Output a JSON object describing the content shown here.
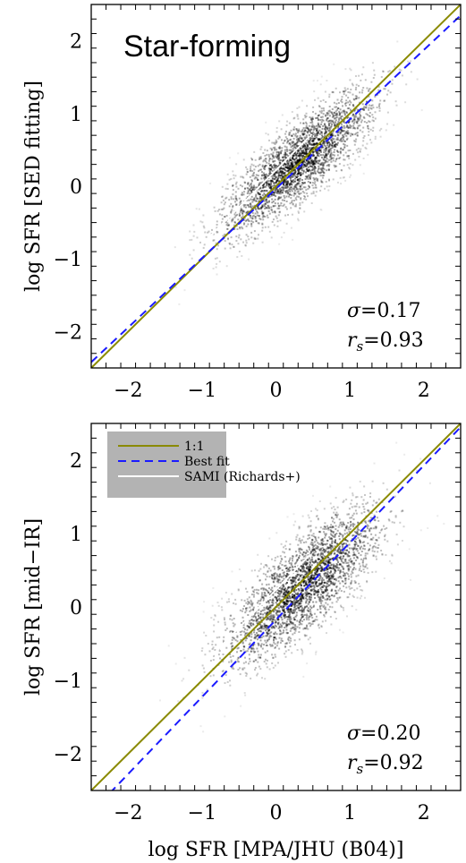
{
  "chart_data": [
    {
      "type": "scatter",
      "panel_label": "Star-forming",
      "ylabel": "log SFR [SED fitting]",
      "xlabel": "",
      "xlim": [
        -2.5,
        2.5
      ],
      "ylim": [
        -2.5,
        2.5
      ],
      "xticks": [
        "−2",
        "−1",
        "0",
        "1",
        "2"
      ],
      "yticks": [
        "−2",
        "−1",
        "0",
        "1",
        "2"
      ],
      "stats": {
        "sigma_symbol": "σ",
        "sigma_value": "=0.17",
        "rs_symbol": "r",
        "rs_sub": "s",
        "rs_value": "=0.93"
      },
      "density": {
        "center_x": 0.3,
        "center_y": 0.35,
        "spread_major": 0.72,
        "spread_minor": 0.2,
        "slope": 0.95
      },
      "series": [
        {
          "name": "1:1",
          "style": "solid",
          "color": "#8a8a00",
          "x": [
            -2.5,
            2.5
          ],
          "y": [
            -2.5,
            2.5
          ]
        },
        {
          "name": "Best fit",
          "style": "dashed",
          "color": "#1a1aff",
          "x": [
            -2.5,
            2.5
          ],
          "y": [
            -2.42,
            2.35
          ]
        },
        {
          "name": "SAMI (Richards+)",
          "style": "solid",
          "color": "#ffffff",
          "x": [
            -1.0,
            0.45
          ],
          "y": [
            -0.8,
            0.68
          ]
        }
      ]
    },
    {
      "type": "scatter",
      "panel_label": "",
      "ylabel": "log SFR [mid−IR]",
      "xlabel": "log SFR [MPA/JHU (B04)]",
      "xlim": [
        -2.5,
        2.5
      ],
      "ylim": [
        -2.5,
        2.5
      ],
      "xticks": [
        "−2",
        "−1",
        "0",
        "1",
        "2"
      ],
      "yticks": [
        "−2",
        "−1",
        "0",
        "1",
        "2"
      ],
      "stats": {
        "sigma_symbol": "σ",
        "sigma_value": "=0.20",
        "rs_symbol": "r",
        "rs_sub": "s",
        "rs_value": "=0.92"
      },
      "density": {
        "center_x": 0.35,
        "center_y": 0.3,
        "spread_major": 0.72,
        "spread_minor": 0.24,
        "slope": 1.0
      },
      "legend": {
        "position": "top-left",
        "items": [
          "1:1",
          "Best fit",
          "SAMI (Richards+)"
        ]
      },
      "series": [
        {
          "name": "1:1",
          "style": "solid",
          "color": "#8a8a00",
          "x": [
            -2.5,
            2.5
          ],
          "y": [
            -2.5,
            2.5
          ]
        },
        {
          "name": "Best fit",
          "style": "dashed",
          "color": "#1a1aff",
          "x": [
            -2.5,
            2.5
          ],
          "y": [
            -2.8,
            2.45
          ]
        },
        {
          "name": "SAMI (Richards+)",
          "style": "solid",
          "color": "#ffffff",
          "x": [
            -0.95,
            0.45
          ],
          "y": [
            -0.75,
            0.7
          ]
        }
      ]
    }
  ]
}
